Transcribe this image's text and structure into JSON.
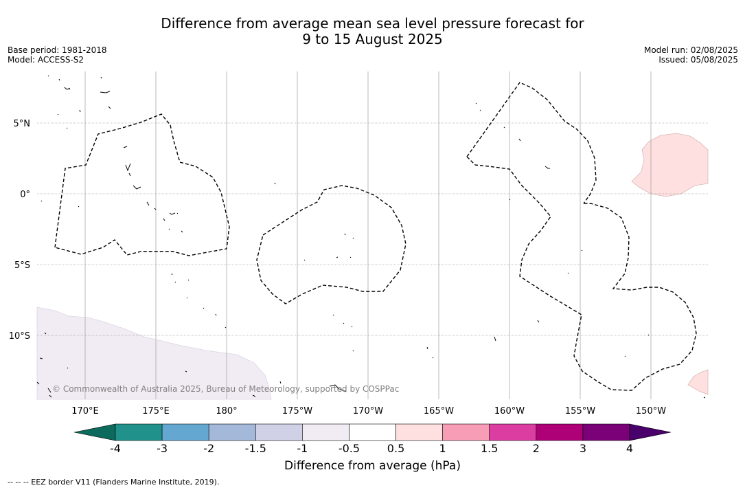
{
  "title": {
    "line1": "Difference from average mean sea level pressure forecast for",
    "line2": "9 to 15 August 2025"
  },
  "meta": {
    "base_period": "Base period: 1981-2018",
    "model": "Model: ACCESS-S2",
    "model_run": "Model run: 02/08/2025",
    "issued": "Issued: 05/08/2025"
  },
  "map": {
    "lat_labels": [
      "5°N",
      "0°",
      "5°S",
      "10°S"
    ],
    "lon_labels": [
      "170°E",
      "175°E",
      "180°",
      "175°W",
      "170°W",
      "165°W",
      "160°W",
      "155°W",
      "150°W"
    ],
    "copyright": "© Commonwealth of Australia 2025, Bureau of Meteorology, supported by COSPPac",
    "colors": {
      "low_anomaly_-0.5": "#f1ecf4",
      "high_anomaly_0.5": "#fde0df",
      "eez_border": "#000000",
      "grid": "#888888"
    }
  },
  "colorbar": {
    "title": "Difference from average (hPa)",
    "labels": [
      "-4",
      "-3",
      "-2",
      "-1.5",
      "-1",
      "-0.5",
      "0.5",
      "1",
      "1.5",
      "2",
      "3",
      "4"
    ],
    "colors": [
      "#0c6b5c",
      "#21918c",
      "#64a8d2",
      "#a4b8da",
      "#d0d0e6",
      "#f1ecf4",
      "#ffffff",
      "#fde0df",
      "#f89db6",
      "#db3ea0",
      "#ae0178",
      "#7a0177",
      "#49006a"
    ]
  },
  "footer": "--  --  -- EEZ border V11 (Flanders Marine Institute, 2019)."
}
